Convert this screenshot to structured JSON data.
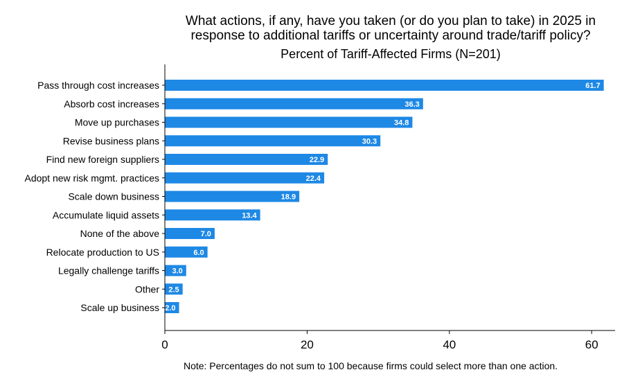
{
  "chart_data": {
    "type": "bar",
    "orientation": "horizontal",
    "title_lines": [
      "What actions, if any, have you taken (or do you plan to take) in 2025 in",
      "response to additional tariffs or uncertainty around trade/tariff policy?"
    ],
    "subtitle": "Percent of Tariff-Affected Firms (N=201)",
    "categories": [
      "Pass through cost increases",
      "Absorb cost increases",
      "Move up purchases",
      "Revise business plans",
      "Find new foreign suppliers",
      "Adopt new risk mgmt. practices",
      "Scale down business",
      "Accumulate liquid assets",
      "None of the above",
      "Relocate production to US",
      "Legally challenge tariffs",
      "Other",
      "Scale up business"
    ],
    "values": [
      61.7,
      36.3,
      34.8,
      30.3,
      22.9,
      22.4,
      18.9,
      13.4,
      7.0,
      6.0,
      3.0,
      2.5,
      2.0
    ],
    "value_labels": [
      "61.7",
      "36.3",
      "34.8",
      "30.3",
      "22.9",
      "22.4",
      "18.9",
      "13.4",
      "7.0",
      "6.0",
      "3.0",
      "2.5",
      "2.0"
    ],
    "x_ticks": [
      0,
      20,
      40,
      60
    ],
    "x_tick_labels": [
      "0",
      "20",
      "40",
      "60"
    ],
    "xlim": [
      0,
      63
    ],
    "grid": false,
    "bar_color": "#1e88e5",
    "value_label_color": "#ffffff",
    "note": "Note: Percentages do not sum to 100 because firms could select more than one action."
  }
}
